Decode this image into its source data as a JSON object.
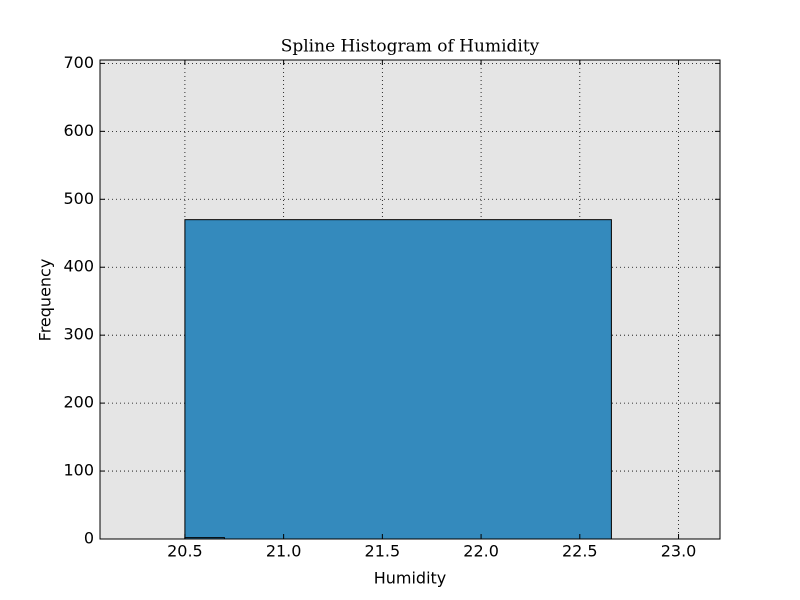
{
  "chart_data": {
    "type": "histogram",
    "title": "Spline Histogram of Humidity",
    "xlabel": "Humidity",
    "ylabel": "Frequency",
    "series": [
      {
        "color": "#348abd",
        "bins": [
          20.5,
          22.66
        ],
        "values": [
          470
        ]
      },
      {
        "color": "#348abd",
        "bins": [
          20.5,
          20.7
        ],
        "values": [
          2
        ]
      }
    ],
    "xlim": [
      20.07,
      23.21
    ],
    "xticks": [
      20.5,
      {
        "value": 21,
        "label": "21.0"
      },
      21.5,
      {
        "value": 22,
        "label": "22.0"
      },
      22.5,
      {
        "value": 23,
        "label": "23.0"
      }
    ],
    "ylim": [
      0,
      705
    ],
    "yticks": [
      0,
      100,
      200,
      300,
      400,
      500,
      600,
      700
    ],
    "grid": true,
    "background": "#e5e5e5"
  }
}
